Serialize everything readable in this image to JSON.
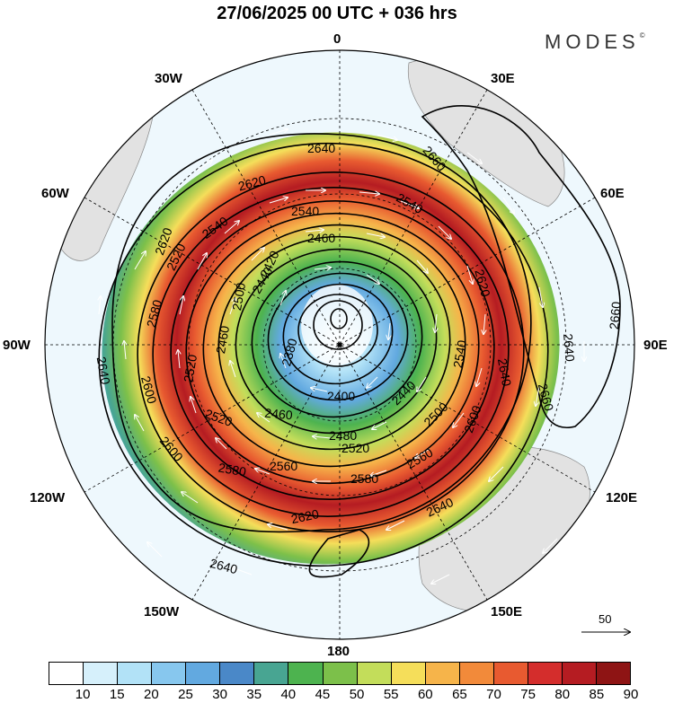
{
  "title": "27/06/2025  00 UTC  + 036 hrs",
  "brand": "MODES",
  "brand_mark": "©",
  "longitude_labels": {
    "lon_0": "0",
    "lon_30e": "30E",
    "lon_60e": "60E",
    "lon_90e": "90E",
    "lon_120e": "120E",
    "lon_150e": "150E",
    "lon_180": "180",
    "lon_150w": "150W",
    "lon_120w": "120W",
    "lon_90w": "90W",
    "lon_60w": "60W",
    "lon_30w": "30W"
  },
  "contour_labels": {
    "c2660a": "2660",
    "c2660b": "2660",
    "c2660c": "2660",
    "c2640a": "2640",
    "c2640b": "2640",
    "c2640c": "2640",
    "c2640d": "2640",
    "c2640e": "2640",
    "c2640f": "2640",
    "c2620a": "2620",
    "c2620b": "2620",
    "c2620c": "2620",
    "c2620d": "2620",
    "c2600a": "2600",
    "c2600b": "2600",
    "c2600c": "2600",
    "c2580a": "2580",
    "c2580b": "2580",
    "c2580c": "2580",
    "c2560a": "2560",
    "c2560b": "2560",
    "c2540a": "2540",
    "c2540b": "2540",
    "c2540c": "2540",
    "c2540d": "2540",
    "c2520a": "2520",
    "c2520b": "2520",
    "c2520c": "2520",
    "c2520d": "2520",
    "c2500a": "2500",
    "c2500b": "2500",
    "c2480": "2480",
    "c2460a": "2460",
    "c2460b": "2460",
    "c2460c": "2460",
    "c2440a": "2440",
    "c2440b": "2440",
    "c2420": "2420",
    "c2400": "2400",
    "c2380": "2380"
  },
  "colorbar": {
    "colors": [
      "#ffffff",
      "#d6f0fb",
      "#b2e2f7",
      "#87c7ee",
      "#62a9e0",
      "#4a88c8",
      "#48a592",
      "#4db34f",
      "#7cc04a",
      "#c3dd5a",
      "#f5de5a",
      "#f6b44a",
      "#f28a3a",
      "#e85a30",
      "#d42d2c",
      "#b51c22",
      "#8e1414"
    ],
    "ticks": [
      "10",
      "15",
      "20",
      "25",
      "30",
      "35",
      "40",
      "45",
      "50",
      "55",
      "60",
      "65",
      "70",
      "75",
      "80",
      "85",
      "90"
    ]
  },
  "wind_scale": {
    "value": "50"
  }
}
